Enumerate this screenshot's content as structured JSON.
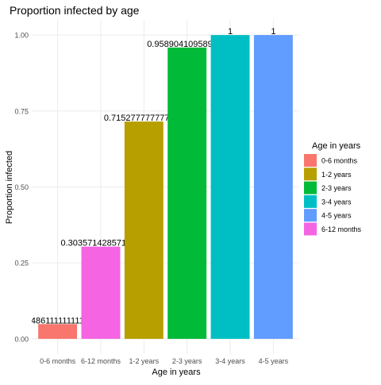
{
  "chart_data": {
    "type": "bar",
    "title": "Proportion infected by age",
    "x_label": "Age in years",
    "y_label": "Proportion infected",
    "categories": [
      "0-6 months",
      "6-12 months",
      "1-2 years",
      "2-3 years",
      "3-4 years",
      "4-5 years"
    ],
    "values": [
      0.0486111111111111,
      0.303571428571429,
      0.715277777777778,
      0.958904109589041,
      1,
      1
    ],
    "ylim": [
      -0.05,
      1.05
    ],
    "yticks": [
      {
        "value": 0,
        "label": "0.00"
      },
      {
        "value": 0.25,
        "label": "0.25"
      },
      {
        "value": 0.5,
        "label": "0.50"
      },
      {
        "value": 0.75,
        "label": "0.75"
      },
      {
        "value": 1,
        "label": "1.00"
      }
    ],
    "grid": true,
    "legend": {
      "title": "Age in years",
      "position": "right",
      "entries": [
        {
          "name": "0-6 months",
          "color": "#F8766D"
        },
        {
          "name": "1-2 years",
          "color": "#B79F00"
        },
        {
          "name": "2-3 years",
          "color": "#00BA38"
        },
        {
          "name": "3-4 years",
          "color": "#00BFC4"
        },
        {
          "name": "4-5 years",
          "color": "#619CFF"
        },
        {
          "name": "6-12 months",
          "color": "#F564E3"
        }
      ]
    }
  }
}
